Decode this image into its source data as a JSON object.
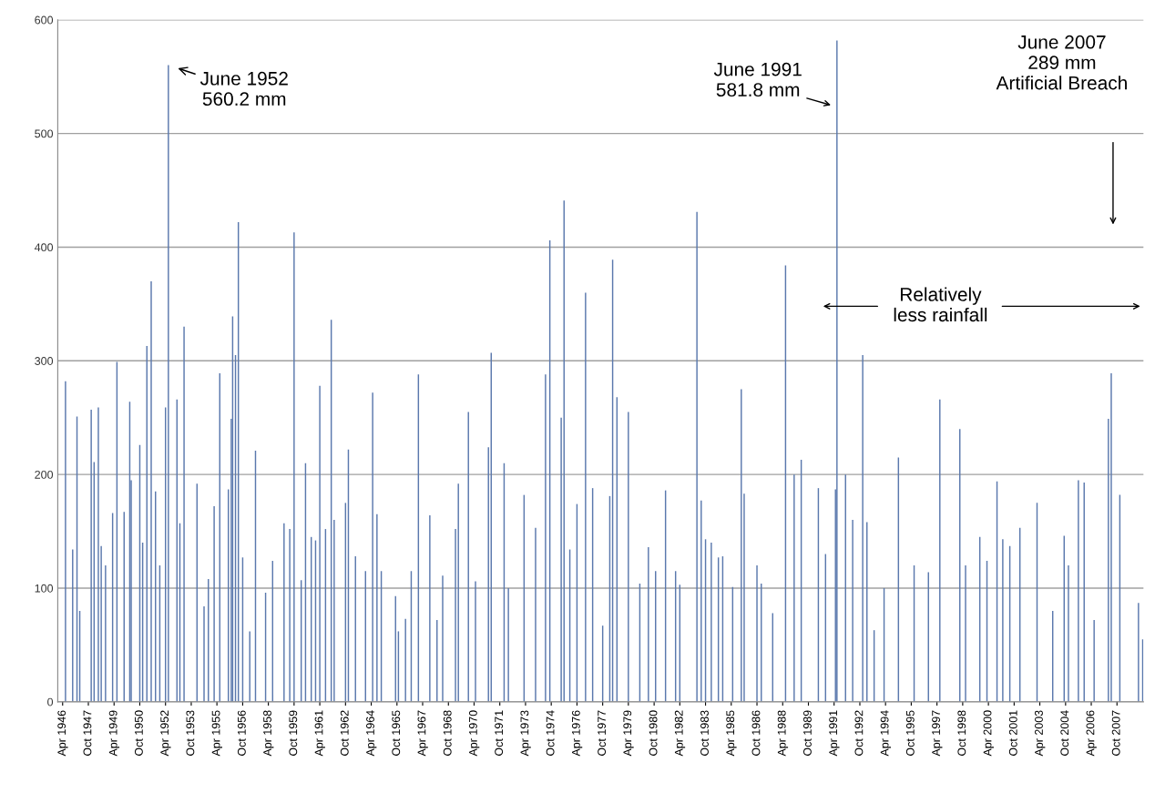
{
  "chart_data": {
    "type": "bar",
    "color": "#5a78ad",
    "x": [
      "1946-06",
      "1946-11",
      "1947-02",
      "1947-04",
      "1947-12",
      "1948-02",
      "1948-05",
      "1948-07",
      "1948-10",
      "1949-03",
      "1949-06",
      "1949-11",
      "1950-03",
      "1950-04",
      "1950-10",
      "1950-12",
      "1951-03",
      "1951-06",
      "1951-09",
      "1951-12",
      "1952-04",
      "1952-06",
      "1952-12",
      "1953-02",
      "1953-05",
      "1954-02",
      "1954-07",
      "1954-10",
      "1955-02",
      "1955-06",
      "1955-12",
      "1956-02",
      "1956-03",
      "1956-05",
      "1956-07",
      "1956-10",
      "1957-03",
      "1957-07",
      "1958-02",
      "1958-07",
      "1959-03",
      "1959-07",
      "1959-10",
      "1960-03",
      "1960-06",
      "1960-10",
      "1961-01",
      "1961-04",
      "1961-08",
      "1961-12",
      "1962-02",
      "1962-10",
      "1962-12",
      "1963-05",
      "1963-12",
      "1964-05",
      "1964-08",
      "1964-11",
      "1965-09",
      "1965-11",
      "1966-04",
      "1966-08",
      "1967-01",
      "1967-09",
      "1968-02",
      "1968-06",
      "1969-03",
      "1969-05",
      "1969-12",
      "1970-05",
      "1971-02",
      "1971-04",
      "1972-01",
      "1972-04",
      "1973-03",
      "1973-11",
      "1974-06",
      "1974-09",
      "1975-05",
      "1975-07",
      "1975-11",
      "1976-04",
      "1976-10",
      "1977-03",
      "1977-10",
      "1978-03",
      "1978-05",
      "1978-08",
      "1979-04",
      "1979-12",
      "1980-06",
      "1980-11",
      "1981-06",
      "1982-01",
      "1982-04",
      "1983-04",
      "1983-07",
      "1983-10",
      "1984-02",
      "1984-07",
      "1984-10",
      "1985-05",
      "1985-11",
      "1986-01",
      "1986-10",
      "1987-01",
      "1987-09",
      "1988-06",
      "1988-12",
      "1989-05",
      "1990-05",
      "1990-10",
      "1991-05",
      "1991-06",
      "1991-12",
      "1992-05",
      "1992-12",
      "1993-03",
      "1993-08",
      "1994-03",
      "1995-01",
      "1995-12",
      "1996-10",
      "1997-06",
      "1998-08",
      "1998-12",
      "1999-10",
      "2000-03",
      "2000-10",
      "2001-02",
      "2001-07",
      "2002-02",
      "2003-02",
      "2004-01",
      "2004-09",
      "2004-12",
      "2005-07",
      "2005-11",
      "2006-06",
      "2007-04",
      "2007-06",
      "2007-12",
      "2009-01",
      "2009-04"
    ],
    "values": [
      282,
      134,
      251,
      80,
      257,
      211,
      259,
      137,
      120,
      166,
      299,
      167,
      264,
      195,
      226,
      140,
      313,
      370,
      185,
      120,
      259,
      560.2,
      266,
      157,
      330,
      192,
      84,
      108,
      172,
      289,
      187,
      249,
      339,
      305,
      422,
      127,
      62,
      221,
      96,
      124,
      157,
      152,
      413,
      107,
      210,
      145,
      142,
      278,
      152,
      336,
      160,
      175,
      222,
      128,
      115,
      272,
      165,
      115,
      93,
      62,
      73,
      115,
      288,
      164,
      72,
      111,
      152,
      192,
      255,
      106,
      224,
      307,
      210,
      100,
      182,
      153,
      288,
      406,
      250,
      441,
      134,
      174,
      360,
      188,
      67,
      181,
      389,
      268,
      255,
      104,
      136,
      115,
      186,
      115,
      103,
      431,
      177,
      143,
      140,
      127,
      128,
      101,
      275,
      183,
      120,
      104,
      78,
      384,
      200,
      213,
      188,
      130,
      187,
      581.8,
      200,
      160,
      305,
      158,
      63,
      100,
      215,
      120,
      114,
      266,
      240,
      120,
      145,
      124,
      194,
      143,
      137,
      153,
      175,
      80,
      146,
      120,
      195,
      193,
      72,
      249,
      289,
      182,
      87,
      55
    ],
    "xlim": [
      "1946-01",
      "2009-05"
    ],
    "ylim": [
      0,
      600
    ],
    "yticks": [
      0,
      100,
      200,
      300,
      400,
      500,
      600
    ],
    "xticks": [
      {
        "value": "1946-04",
        "label": "Apr 1946"
      },
      {
        "value": "1947-10",
        "label": "Oct 1947"
      },
      {
        "value": "1949-04",
        "label": "Apr 1949"
      },
      {
        "value": "1950-10",
        "label": "Oct 1950"
      },
      {
        "value": "1952-04",
        "label": "Apr 1952"
      },
      {
        "value": "1953-10",
        "label": "Oct 1953"
      },
      {
        "value": "1955-04",
        "label": "Apr 1955"
      },
      {
        "value": "1956-10",
        "label": "Oct 1956"
      },
      {
        "value": "1958-04",
        "label": "Apr 1958"
      },
      {
        "value": "1959-10",
        "label": "Oct 1959"
      },
      {
        "value": "1961-04",
        "label": "Apr 1961"
      },
      {
        "value": "1962-10",
        "label": "Oct 1962"
      },
      {
        "value": "1964-04",
        "label": "Apr 1964"
      },
      {
        "value": "1965-10",
        "label": "Oct 1965"
      },
      {
        "value": "1967-04",
        "label": "Apr 1967"
      },
      {
        "value": "1968-10",
        "label": "Oct 1968"
      },
      {
        "value": "1970-04",
        "label": "Apr 1970"
      },
      {
        "value": "1971-10",
        "label": "Oct 1971"
      },
      {
        "value": "1973-04",
        "label": "Apr 1973"
      },
      {
        "value": "1974-10",
        "label": "Oct 1974"
      },
      {
        "value": "1976-04",
        "label": "Apr 1976"
      },
      {
        "value": "1977-10",
        "label": "Oct 1977"
      },
      {
        "value": "1979-04",
        "label": "Apr 1979"
      },
      {
        "value": "1980-10",
        "label": "Oct 1980"
      },
      {
        "value": "1982-04",
        "label": "Apr 1982"
      },
      {
        "value": "1983-10",
        "label": "Oct 1983"
      },
      {
        "value": "1985-04",
        "label": "Apr 1985"
      },
      {
        "value": "1986-10",
        "label": "Oct 1986"
      },
      {
        "value": "1988-04",
        "label": "Apr 1988"
      },
      {
        "value": "1989-10",
        "label": "Oct 1989"
      },
      {
        "value": "1991-04",
        "label": "Apr 1991"
      },
      {
        "value": "1992-10",
        "label": "Oct 1992"
      },
      {
        "value": "1994-04",
        "label": "Apr 1994"
      },
      {
        "value": "1995-10",
        "label": "Oct 1995"
      },
      {
        "value": "1997-04",
        "label": "Apr 1997"
      },
      {
        "value": "1998-10",
        "label": "Oct 1998"
      },
      {
        "value": "2000-04",
        "label": "Apr 2000"
      },
      {
        "value": "2001-10",
        "label": "Oct 2001"
      },
      {
        "value": "2003-04",
        "label": "Apr 2003"
      },
      {
        "value": "2004-10",
        "label": "Oct 2004"
      },
      {
        "value": "2006-04",
        "label": "Apr 2006"
      },
      {
        "value": "2007-10",
        "label": "Oct 2007"
      }
    ],
    "grid": "y",
    "annotations": [
      {
        "text": "June 1952\n560.2 mm",
        "x": "1952-06",
        "y": 560.2
      },
      "June 1991\n581.8 mm",
      "June 2007\n289 mm\nArtificial Breach",
      "Relatively\nless rainfall"
    ]
  }
}
